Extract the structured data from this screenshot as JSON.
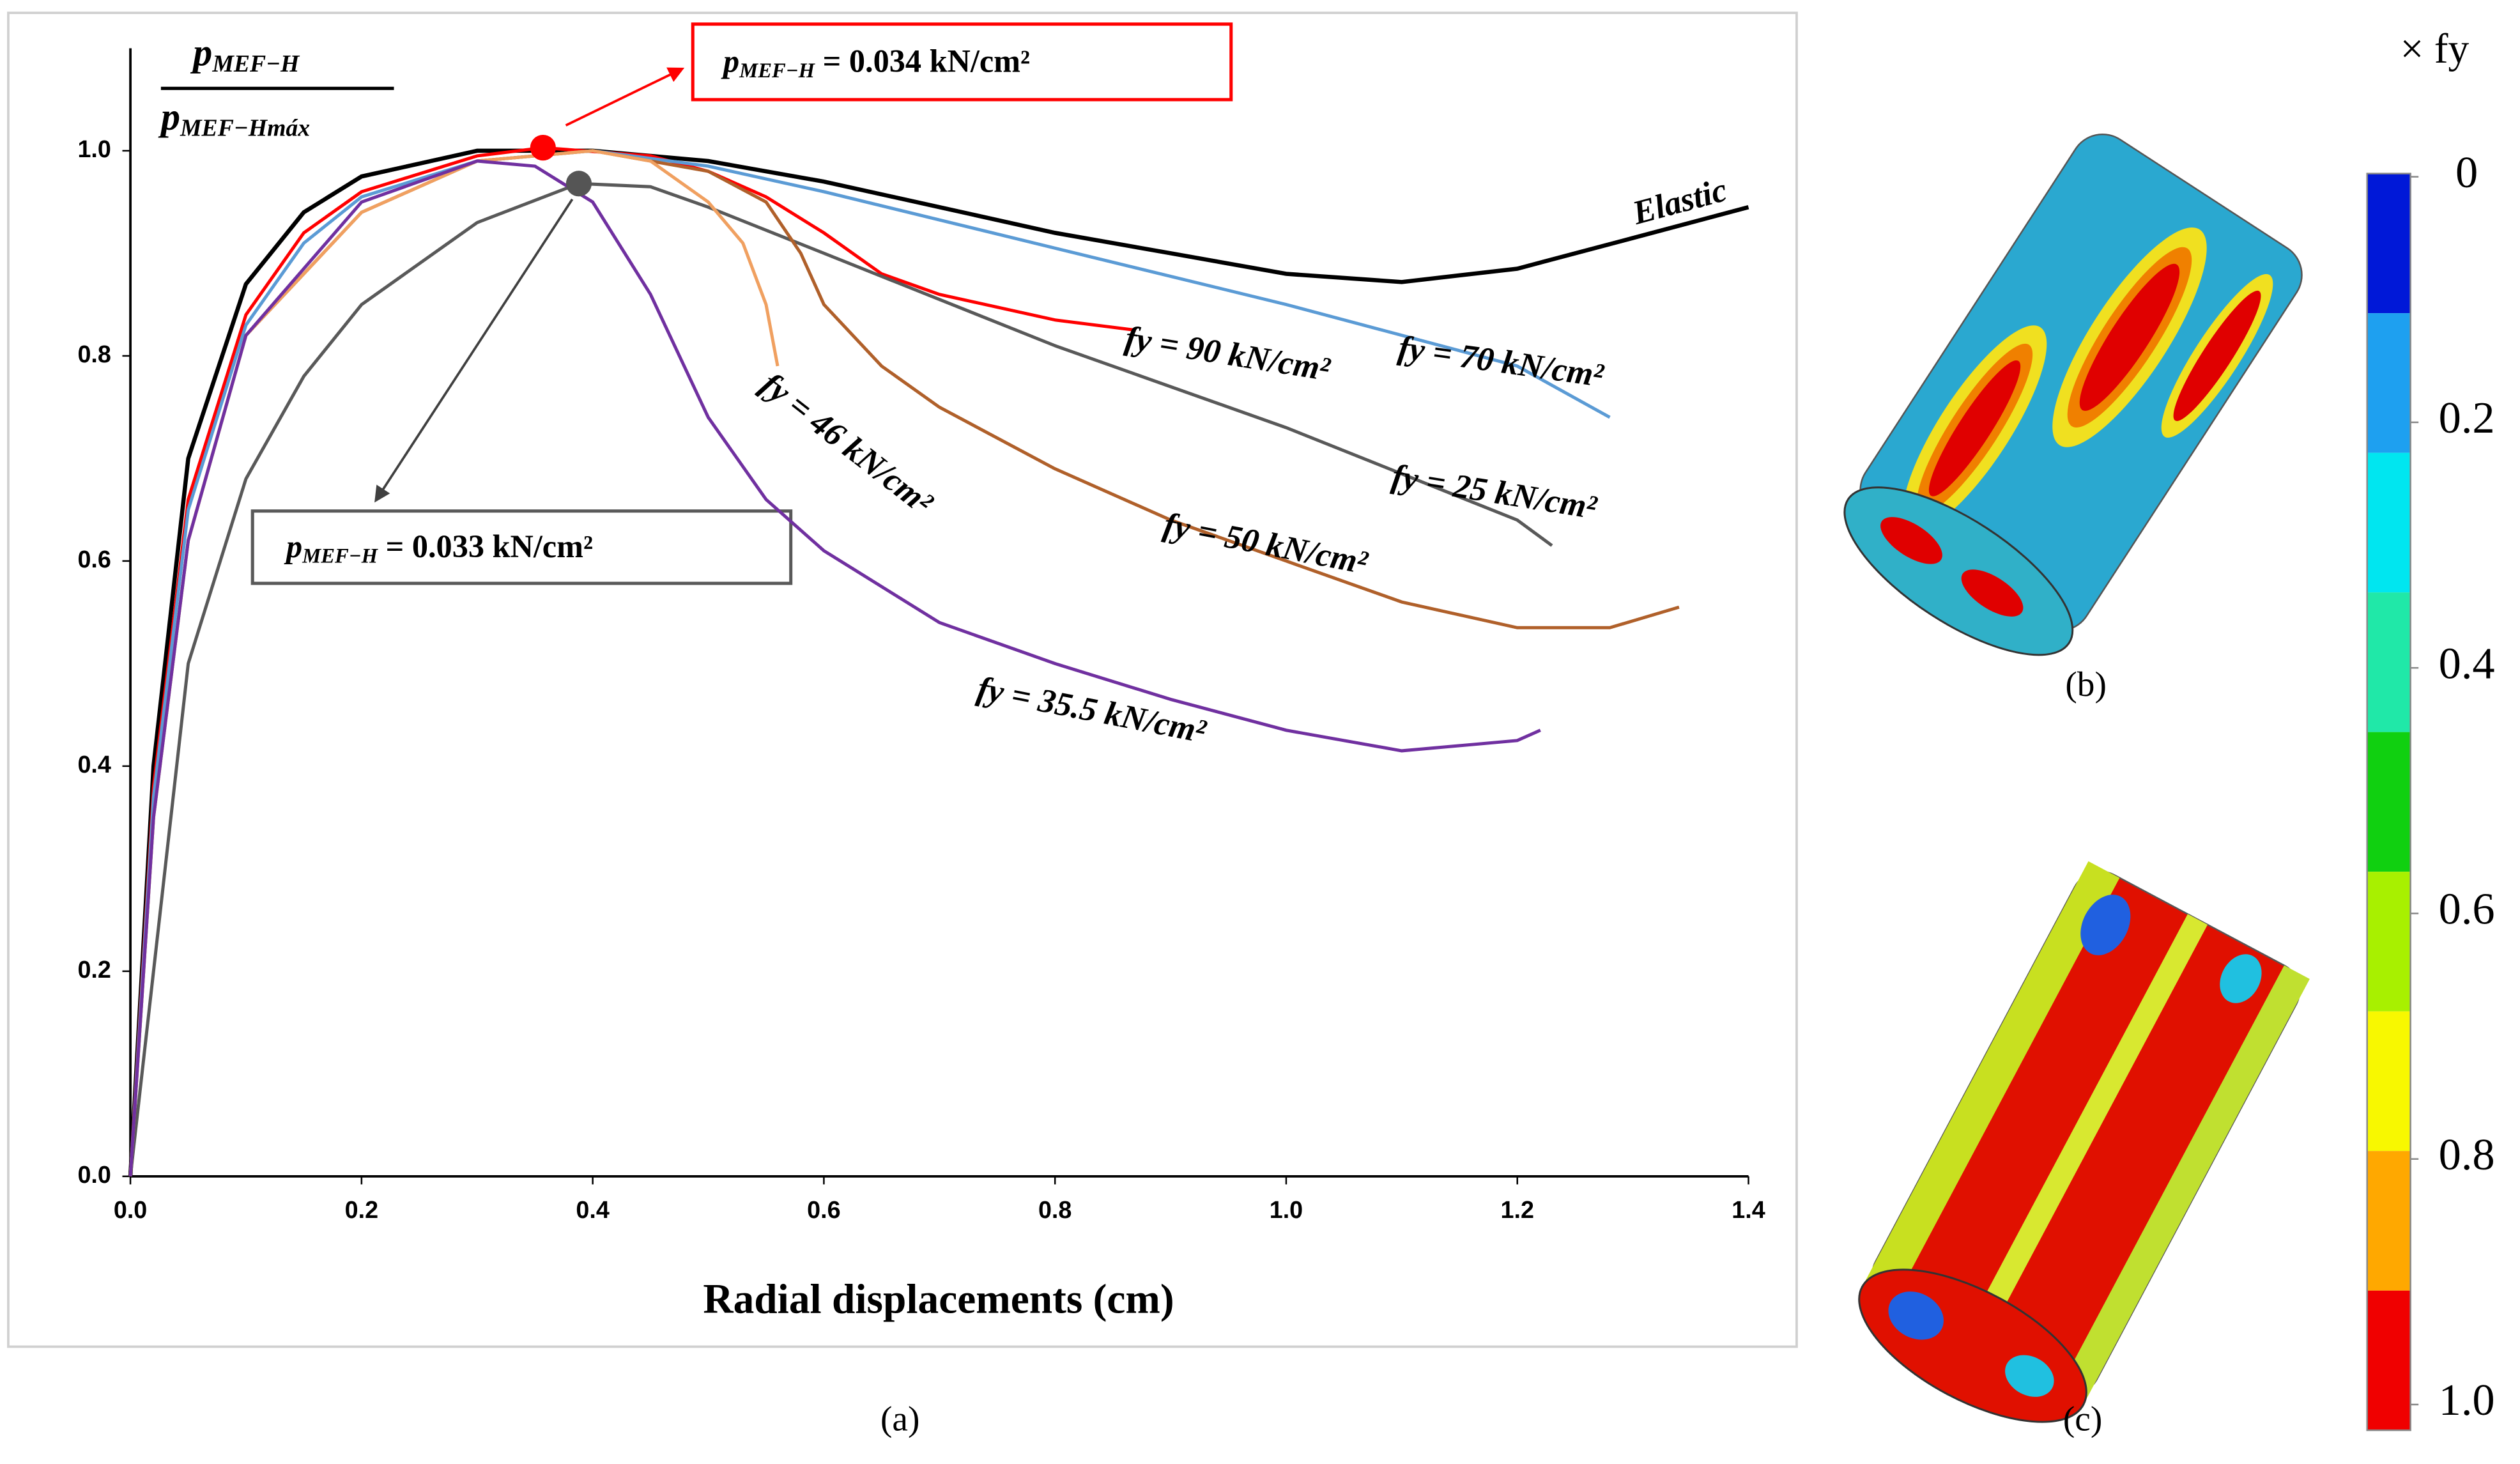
{
  "chart_data": {
    "type": "line",
    "xlabel": "Radial displacements (cm)",
    "ylabel": {
      "numerator": {
        "symbol": "p",
        "subscript": "MEF−H"
      },
      "denominator": {
        "symbol": "p",
        "subscript": "MEF−Hmáx"
      }
    },
    "panel_labels": [
      "(a)",
      "(b)",
      "(c)"
    ],
    "xlim": [
      0,
      1.4
    ],
    "ylim": [
      0,
      1.1
    ],
    "xticks": [
      {
        "value": 0,
        "label": "0.0"
      },
      0.2,
      0.4,
      0.6,
      0.8,
      {
        "value": 1,
        "label": "1.0"
      },
      1.2,
      1.4
    ],
    "yticks": [
      {
        "value": 0,
        "label": "0.0"
      },
      0.2,
      0.4,
      0.6,
      0.8,
      {
        "value": 1,
        "label": "1.0"
      }
    ],
    "series": [
      {
        "name": "Elastic",
        "color": "#000000",
        "x": [
          0,
          0.02,
          0.05,
          0.1,
          0.15,
          0.2,
          0.3,
          0.4,
          0.5,
          0.6,
          0.7,
          0.8,
          0.9,
          1.0,
          1.1,
          1.2,
          1.3,
          1.4
        ],
        "values": [
          0,
          0.4,
          0.7,
          0.87,
          0.94,
          0.975,
          1.0,
          1.0,
          0.99,
          0.97,
          0.945,
          0.92,
          0.9,
          0.88,
          0.872,
          0.885,
          0.915,
          0.945
        ]
      },
      {
        "name": "fy = 90 kN/cm²",
        "color": "#ff0000",
        "x": [
          0,
          0.02,
          0.05,
          0.1,
          0.15,
          0.2,
          0.3,
          0.357,
          0.45,
          0.5,
          0.55,
          0.6,
          0.65,
          0.7,
          0.8,
          0.87
        ],
        "values": [
          0,
          0.38,
          0.66,
          0.84,
          0.92,
          0.96,
          0.995,
          1.003,
          0.995,
          0.98,
          0.955,
          0.92,
          0.88,
          0.86,
          0.835,
          0.825
        ]
      },
      {
        "name": "fy = 70 kN/cm²",
        "color": "#5b9bd5",
        "x": [
          0,
          0.02,
          0.05,
          0.1,
          0.15,
          0.2,
          0.3,
          0.4,
          0.5,
          0.6,
          0.8,
          1.0,
          1.2,
          1.28
        ],
        "values": [
          0,
          0.37,
          0.65,
          0.83,
          0.91,
          0.955,
          0.99,
          1.0,
          0.985,
          0.96,
          0.905,
          0.85,
          0.79,
          0.74
        ]
      },
      {
        "name": "fy = 25 kN/cm²",
        "color": "#595959",
        "x": [
          0,
          0.05,
          0.1,
          0.15,
          0.2,
          0.3,
          0.388,
          0.45,
          0.5,
          0.6,
          0.8,
          1.0,
          1.2,
          1.23
        ],
        "values": [
          0,
          0.5,
          0.68,
          0.78,
          0.85,
          0.93,
          0.968,
          0.965,
          0.945,
          0.9,
          0.81,
          0.73,
          0.64,
          0.615
        ]
      },
      {
        "name": "fy = 50 kN/cm²",
        "color": "#b0602a",
        "x": [
          0,
          0.02,
          0.05,
          0.1,
          0.2,
          0.3,
          0.4,
          0.5,
          0.55,
          0.58,
          0.6,
          0.65,
          0.7,
          0.8,
          0.9,
          1.0,
          1.1,
          1.2,
          1.28,
          1.34
        ],
        "values": [
          0,
          0.35,
          0.62,
          0.82,
          0.94,
          0.99,
          1.0,
          0.98,
          0.95,
          0.9,
          0.85,
          0.79,
          0.75,
          0.69,
          0.64,
          0.6,
          0.56,
          0.535,
          0.535,
          0.555
        ]
      },
      {
        "name": "fy = 46 kN/cm²",
        "color": "#f0a060",
        "x": [
          0,
          0.02,
          0.05,
          0.1,
          0.2,
          0.3,
          0.4,
          0.45,
          0.5,
          0.53,
          0.55,
          0.56
        ],
        "values": [
          0,
          0.35,
          0.62,
          0.82,
          0.94,
          0.99,
          1.0,
          0.99,
          0.95,
          0.91,
          0.85,
          0.79
        ]
      },
      {
        "name": "fy = 35.5 kN/cm²",
        "color": "#7030a0",
        "x": [
          0,
          0.02,
          0.05,
          0.1,
          0.2,
          0.3,
          0.35,
          0.4,
          0.45,
          0.5,
          0.55,
          0.6,
          0.7,
          0.8,
          0.9,
          1.0,
          1.1,
          1.2,
          1.22
        ],
        "values": [
          0,
          0.35,
          0.62,
          0.82,
          0.95,
          0.99,
          0.985,
          0.95,
          0.86,
          0.74,
          0.66,
          0.61,
          0.54,
          0.5,
          0.465,
          0.435,
          0.415,
          0.425,
          0.435
        ]
      }
    ],
    "points": [
      {
        "x": 0.357,
        "y": 1.003,
        "color": "#ff0000"
      },
      {
        "x": 0.388,
        "y": 0.968,
        "color": "#555555"
      }
    ],
    "annotations": [
      {
        "symbol": "p",
        "subscript": "MEF−H",
        "text": " = 0.034 kN/cm²",
        "color": "#ff0000"
      },
      {
        "symbol": "p",
        "subscript": "MEF−H",
        "text": " = 0.033 kN/cm²",
        "color": "#595959"
      }
    ],
    "colorbar": {
      "label": "× fy",
      "lim": [
        0,
        1
      ],
      "ticks": [
        0,
        0.2,
        0.4,
        0.6,
        0.8,
        {
          "value": 1,
          "label": "1.0"
        }
      ],
      "colors": [
        "#0018d8",
        "#1ea0f0",
        "#00e6f0",
        "#20e8a8",
        "#10d010",
        "#a8f000",
        "#f8f800",
        "#ffa800",
        "#f00000"
      ]
    }
  }
}
